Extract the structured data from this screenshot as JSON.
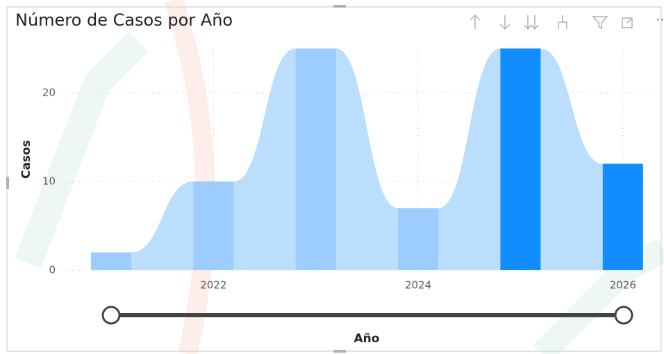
{
  "chart_data": {
    "type": "bar",
    "title": "Número de Casos por Año",
    "x": [
      2021,
      2022,
      2023,
      2024,
      2025,
      2026
    ],
    "values": [
      2,
      10,
      25,
      7,
      25,
      12
    ],
    "colors": [
      "#9dcdfe",
      "#9dcdfe",
      "#9dcdfe",
      "#9dcdfe",
      "#118dff",
      "#118dff"
    ],
    "ribbon_color": "#bcdefd",
    "xlim": [
      2020.6,
      2026.3
    ],
    "xticks": [
      2022,
      2024,
      2026
    ],
    "ylim": [
      0,
      25
    ],
    "yticks": [
      0,
      10,
      20
    ],
    "xlabel": "Año",
    "ylabel": "Casos",
    "grid": true
  }
}
